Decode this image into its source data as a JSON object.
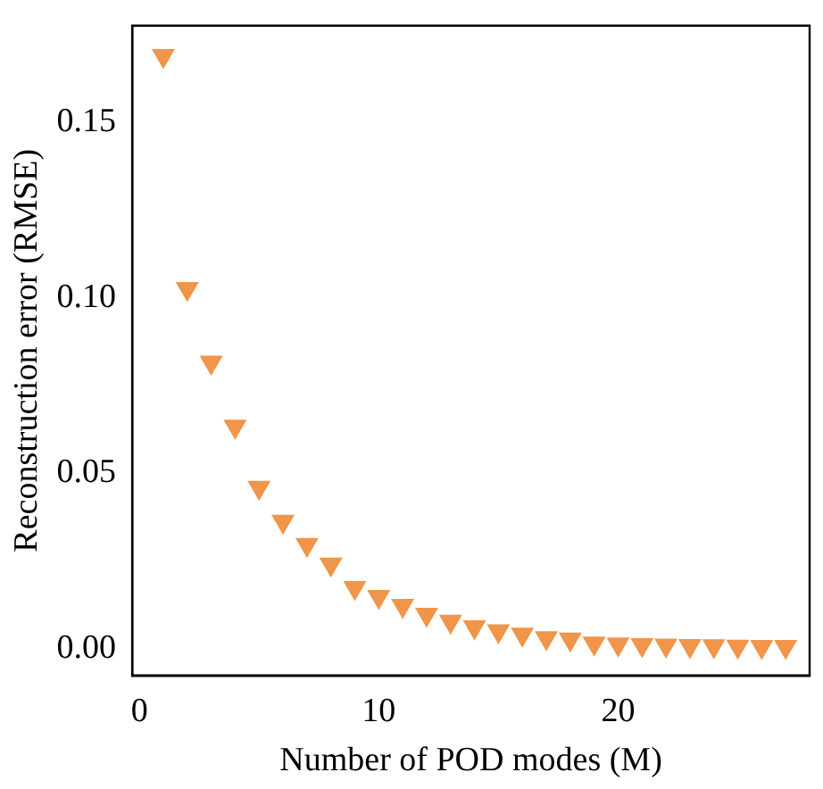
{
  "chart_data": {
    "type": "scatter",
    "xlabel": "Number of POD modes (M)",
    "ylabel": "Reconstruction error (RMSE)",
    "x": [
      1,
      2,
      3,
      4,
      5,
      6,
      7,
      8,
      9,
      10,
      11,
      12,
      13,
      14,
      15,
      16,
      17,
      18,
      19,
      20,
      21,
      22,
      23,
      24,
      25,
      26,
      27
    ],
    "series": [
      {
        "color": "#f0954a",
        "values": [
          0.169,
          0.1026,
          0.0816,
          0.0633,
          0.0459,
          0.0362,
          0.0296,
          0.024,
          0.0173,
          0.0148,
          0.0122,
          0.0097,
          0.0077,
          0.0061,
          0.005,
          0.004,
          0.003,
          0.0026,
          0.0015,
          0.0012,
          0.001,
          0.0009,
          0.0008,
          0.0007,
          0.0006,
          0.0005,
          0.0005
        ]
      }
    ],
    "xlim": [
      -0.3,
      28.0
    ],
    "ylim": [
      -0.0077,
      0.1776
    ],
    "xticks": [
      0,
      10,
      20
    ],
    "yticks": [
      {
        "value": 0,
        "label": "0.00"
      },
      {
        "value": 0.05,
        "label": "0.05"
      },
      {
        "value": 0.1,
        "label": "0.10"
      },
      {
        "value": 0.15,
        "label": "0.15"
      }
    ],
    "marker": "triangle",
    "grid": false,
    "legend": false
  }
}
